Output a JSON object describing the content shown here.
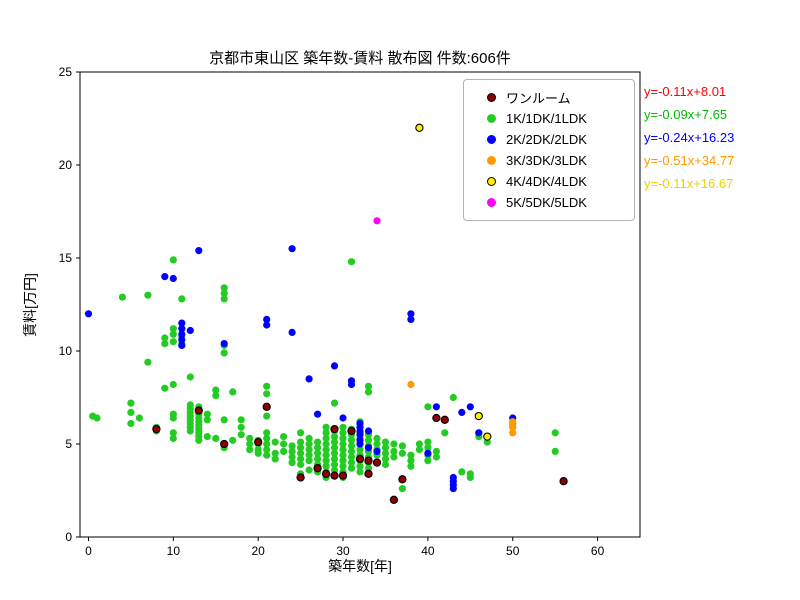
{
  "title": "京都市東山区 築年数-賃料 散布図  件数:606件",
  "chart_data": {
    "type": "scatter",
    "title": "京都市東山区 築年数-賃料 散布図  件数:606件",
    "total_count_label": "件数:606件",
    "xlabel": "築年数[年]",
    "ylabel": "賃料[万円]",
    "xlim": [
      -1,
      65
    ],
    "ylim": [
      0,
      25
    ],
    "xticks": [
      0,
      10,
      20,
      30,
      40,
      50,
      60
    ],
    "yticks": [
      0,
      5,
      10,
      15,
      20,
      25
    ],
    "grid": false,
    "legend_position": "upper right",
    "render_order": [
      1,
      2,
      3,
      4,
      5,
      0
    ],
    "series": [
      {
        "name": "ワンルーム",
        "color": "#8b0000",
        "edge": "#000000",
        "points": [
          [
            8,
            5.8
          ],
          [
            13,
            6.8
          ],
          [
            16,
            5.0
          ],
          [
            20,
            5.1
          ],
          [
            21,
            7.0
          ],
          [
            25,
            3.2
          ],
          [
            27,
            3.7
          ],
          [
            28,
            3.4
          ],
          [
            29,
            5.8
          ],
          [
            29,
            3.3
          ],
          [
            30,
            3.3
          ],
          [
            31,
            5.7
          ],
          [
            32,
            4.2
          ],
          [
            33,
            4.1
          ],
          [
            33,
            3.4
          ],
          [
            34,
            4.0
          ],
          [
            36,
            2.0
          ],
          [
            37,
            3.1
          ],
          [
            41,
            6.4
          ],
          [
            42,
            6.3
          ],
          [
            56,
            3.0
          ]
        ]
      },
      {
        "name": "1K/1DK/1LDK",
        "color": "#22cc22",
        "edge": null,
        "points": [
          [
            0.5,
            6.5
          ],
          [
            1,
            6.4
          ],
          [
            4,
            12.9
          ],
          [
            5,
            7.2
          ],
          [
            5,
            6.7
          ],
          [
            5,
            6.1
          ],
          [
            6,
            6.4
          ],
          [
            7,
            13.0
          ],
          [
            7,
            9.4
          ],
          [
            8,
            5.9
          ],
          [
            8,
            5.7
          ],
          [
            9,
            10.7
          ],
          [
            9,
            10.4
          ],
          [
            9,
            8.0
          ],
          [
            10,
            14.9
          ],
          [
            10,
            11.2
          ],
          [
            10,
            10.9
          ],
          [
            10,
            10.5
          ],
          [
            10,
            8.2
          ],
          [
            10,
            6.6
          ],
          [
            10,
            6.4
          ],
          [
            10,
            5.6
          ],
          [
            10,
            5.3
          ],
          [
            11,
            12.8
          ],
          [
            11,
            10.8
          ],
          [
            11,
            10.4
          ],
          [
            12,
            8.6
          ],
          [
            12,
            7.1
          ],
          [
            12,
            6.9
          ],
          [
            12,
            6.7
          ],
          [
            12,
            6.5
          ],
          [
            12,
            6.3
          ],
          [
            12,
            6.1
          ],
          [
            12,
            5.9
          ],
          [
            12,
            5.7
          ],
          [
            13,
            7.0
          ],
          [
            13,
            6.8
          ],
          [
            13,
            6.6
          ],
          [
            13,
            6.4
          ],
          [
            13,
            6.2
          ],
          [
            13,
            6.0
          ],
          [
            13,
            5.8
          ],
          [
            13,
            5.6
          ],
          [
            13,
            5.4
          ],
          [
            13,
            5.2
          ],
          [
            14,
            6.6
          ],
          [
            14,
            6.3
          ],
          [
            14,
            5.4
          ],
          [
            15,
            7.9
          ],
          [
            15,
            7.6
          ],
          [
            15,
            5.3
          ],
          [
            16,
            13.4
          ],
          [
            16,
            13.1
          ],
          [
            16,
            12.8
          ],
          [
            16,
            10.3
          ],
          [
            16,
            9.9
          ],
          [
            16,
            6.3
          ],
          [
            16,
            5.0
          ],
          [
            16,
            4.8
          ],
          [
            17,
            7.8
          ],
          [
            17,
            5.2
          ],
          [
            18,
            6.3
          ],
          [
            18,
            5.9
          ],
          [
            18,
            5.5
          ],
          [
            19,
            5.3
          ],
          [
            19,
            5.0
          ],
          [
            19,
            4.7
          ],
          [
            20,
            5.2
          ],
          [
            20,
            5.0
          ],
          [
            20,
            4.7
          ],
          [
            20,
            4.5
          ],
          [
            21,
            8.1
          ],
          [
            21,
            7.7
          ],
          [
            21,
            6.5
          ],
          [
            21,
            5.6
          ],
          [
            21,
            5.3
          ],
          [
            21,
            5.0
          ],
          [
            21,
            4.7
          ],
          [
            21,
            4.4
          ],
          [
            22,
            5.1
          ],
          [
            22,
            4.5
          ],
          [
            22,
            4.2
          ],
          [
            23,
            5.4
          ],
          [
            23,
            5.0
          ],
          [
            23,
            4.6
          ],
          [
            24,
            4.9
          ],
          [
            24,
            4.6
          ],
          [
            24,
            4.3
          ],
          [
            24,
            4.0
          ],
          [
            25,
            5.6
          ],
          [
            25,
            5.1
          ],
          [
            25,
            4.8
          ],
          [
            25,
            4.5
          ],
          [
            25,
            4.2
          ],
          [
            25,
            3.9
          ],
          [
            25,
            3.4
          ],
          [
            26,
            5.3
          ],
          [
            26,
            5.0
          ],
          [
            26,
            4.7
          ],
          [
            26,
            4.4
          ],
          [
            26,
            4.1
          ],
          [
            26,
            3.6
          ],
          [
            27,
            5.1
          ],
          [
            27,
            4.8
          ],
          [
            27,
            4.5
          ],
          [
            27,
            4.2
          ],
          [
            27,
            3.9
          ],
          [
            27,
            3.5
          ],
          [
            28,
            5.9
          ],
          [
            28,
            5.6
          ],
          [
            28,
            5.3
          ],
          [
            28,
            5.0
          ],
          [
            28,
            4.7
          ],
          [
            28,
            4.4
          ],
          [
            28,
            4.1
          ],
          [
            28,
            3.8
          ],
          [
            28,
            3.5
          ],
          [
            28,
            3.2
          ],
          [
            29,
            7.2
          ],
          [
            29,
            5.7
          ],
          [
            29,
            5.4
          ],
          [
            29,
            5.1
          ],
          [
            29,
            4.8
          ],
          [
            29,
            4.5
          ],
          [
            29,
            4.2
          ],
          [
            29,
            3.9
          ],
          [
            29,
            3.6
          ],
          [
            29,
            3.3
          ],
          [
            30,
            5.9
          ],
          [
            30,
            5.6
          ],
          [
            30,
            5.3
          ],
          [
            30,
            5.0
          ],
          [
            30,
            4.7
          ],
          [
            30,
            4.4
          ],
          [
            30,
            4.1
          ],
          [
            30,
            3.8
          ],
          [
            30,
            3.5
          ],
          [
            30,
            3.2
          ],
          [
            31,
            14.8
          ],
          [
            31,
            5.8
          ],
          [
            31,
            5.5
          ],
          [
            31,
            5.2
          ],
          [
            31,
            4.9
          ],
          [
            31,
            4.6
          ],
          [
            31,
            4.3
          ],
          [
            31,
            4.0
          ],
          [
            31,
            3.7
          ],
          [
            32,
            6.2
          ],
          [
            32,
            5.9
          ],
          [
            32,
            5.6
          ],
          [
            32,
            5.3
          ],
          [
            32,
            5.0
          ],
          [
            32,
            4.7
          ],
          [
            32,
            4.4
          ],
          [
            32,
            4.1
          ],
          [
            32,
            3.8
          ],
          [
            32,
            3.5
          ],
          [
            33,
            8.1
          ],
          [
            33,
            7.8
          ],
          [
            33,
            5.5
          ],
          [
            33,
            5.2
          ],
          [
            33,
            4.9
          ],
          [
            33,
            4.6
          ],
          [
            33,
            4.3
          ],
          [
            33,
            4.0
          ],
          [
            33,
            3.7
          ],
          [
            33,
            3.4
          ],
          [
            34,
            5.3
          ],
          [
            34,
            5.0
          ],
          [
            34,
            4.7
          ],
          [
            34,
            4.4
          ],
          [
            35,
            5.1
          ],
          [
            35,
            4.8
          ],
          [
            35,
            4.5
          ],
          [
            35,
            4.2
          ],
          [
            35,
            3.9
          ],
          [
            36,
            5.0
          ],
          [
            36,
            4.6
          ],
          [
            36,
            4.3
          ],
          [
            37,
            4.9
          ],
          [
            37,
            4.5
          ],
          [
            37,
            2.6
          ],
          [
            38,
            4.4
          ],
          [
            38,
            4.1
          ],
          [
            38,
            3.8
          ],
          [
            39,
            5.0
          ],
          [
            39,
            4.7
          ],
          [
            40,
            7.0
          ],
          [
            40,
            5.1
          ],
          [
            40,
            4.8
          ],
          [
            40,
            4.4
          ],
          [
            40,
            4.1
          ],
          [
            41,
            4.6
          ],
          [
            41,
            4.3
          ],
          [
            42,
            5.6
          ],
          [
            43,
            7.5
          ],
          [
            44,
            3.5
          ],
          [
            45,
            3.4
          ],
          [
            45,
            3.2
          ],
          [
            46,
            5.6
          ],
          [
            46,
            5.4
          ],
          [
            47,
            5.1
          ],
          [
            50,
            6.1
          ],
          [
            50,
            5.9
          ],
          [
            55,
            5.6
          ],
          [
            55,
            4.6
          ]
        ]
      },
      {
        "name": "2K/2DK/2LDK",
        "color": "#0000ff",
        "edge": null,
        "points": [
          [
            0,
            12.0
          ],
          [
            9,
            14.0
          ],
          [
            10,
            13.9
          ],
          [
            11,
            11.5
          ],
          [
            11,
            11.2
          ],
          [
            11,
            10.9
          ],
          [
            11,
            10.6
          ],
          [
            11,
            10.3
          ],
          [
            12,
            11.1
          ],
          [
            13,
            15.4
          ],
          [
            16,
            10.4
          ],
          [
            21,
            11.7
          ],
          [
            21,
            11.4
          ],
          [
            24,
            15.5
          ],
          [
            24,
            11.0
          ],
          [
            26,
            8.5
          ],
          [
            27,
            6.6
          ],
          [
            29,
            9.2
          ],
          [
            30,
            6.4
          ],
          [
            31,
            8.4
          ],
          [
            31,
            8.2
          ],
          [
            32,
            6.1
          ],
          [
            32,
            5.9
          ],
          [
            32,
            5.7
          ],
          [
            32,
            5.5
          ],
          [
            32,
            5.2
          ],
          [
            32,
            5.0
          ],
          [
            33,
            5.7
          ],
          [
            33,
            4.8
          ],
          [
            34,
            4.6
          ],
          [
            38,
            12.0
          ],
          [
            38,
            11.7
          ],
          [
            40,
            4.5
          ],
          [
            41,
            7.0
          ],
          [
            43,
            3.2
          ],
          [
            43,
            3.0
          ],
          [
            43,
            2.8
          ],
          [
            43,
            2.6
          ],
          [
            44,
            6.7
          ],
          [
            45,
            7.0
          ],
          [
            46,
            5.6
          ],
          [
            50,
            6.4
          ]
        ]
      },
      {
        "name": "3K/3DK/3LDK",
        "color": "#ff9900",
        "edge": null,
        "points": [
          [
            38,
            8.2
          ],
          [
            50,
            6.2
          ],
          [
            50,
            5.9
          ],
          [
            50,
            5.6
          ]
        ]
      },
      {
        "name": "4K/4DK/4LDK",
        "color": "#ffee00",
        "edge": "#000000",
        "points": [
          [
            39,
            22.0
          ],
          [
            46,
            6.5
          ],
          [
            47,
            5.4
          ]
        ]
      },
      {
        "name": "5K/5DK/5LDK",
        "color": "#ff00ff",
        "edge": null,
        "points": [
          [
            34,
            17.0
          ]
        ]
      }
    ],
    "annotations": [
      {
        "text": "y=-0.11x+8.01",
        "color": "#ff0000"
      },
      {
        "text": "y=-0.09x+7.65",
        "color": "#00bb00"
      },
      {
        "text": "y=-0.24x+16.23",
        "color": "#0000ff"
      },
      {
        "text": "y=-0.51x+34.77",
        "color": "#ff9900"
      },
      {
        "text": "y=-0.11x+16.67",
        "color": "#e6d400"
      }
    ]
  }
}
